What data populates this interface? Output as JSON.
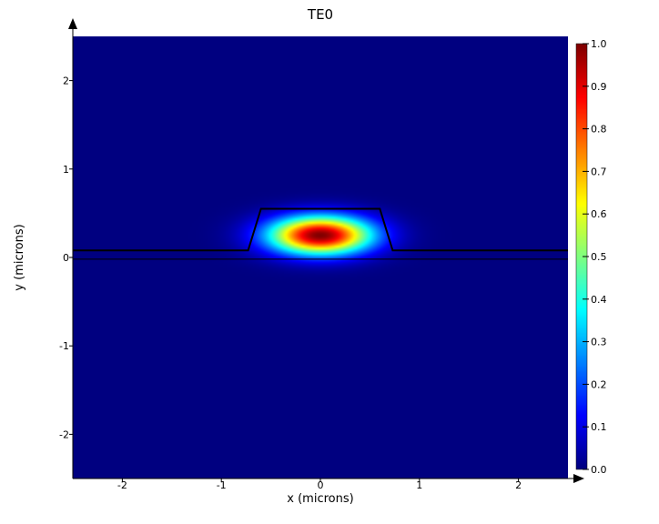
{
  "chart_data": {
    "type": "heatmap",
    "title": "TE0",
    "xlabel": "x (microns)",
    "ylabel": "y (microns)",
    "xlim": [
      -2.5,
      2.5
    ],
    "ylim": [
      -2.5,
      2.5
    ],
    "x_ticks": [
      {
        "value": -2,
        "label": "-2"
      },
      {
        "value": -1,
        "label": "-1"
      },
      {
        "value": 0,
        "label": "0"
      },
      {
        "value": 1,
        "label": "1"
      },
      {
        "value": 2,
        "label": "2"
      }
    ],
    "y_ticks": [
      {
        "value": 2,
        "label": "2"
      },
      {
        "value": 1,
        "label": "1"
      },
      {
        "value": 0,
        "label": "0"
      },
      {
        "value": -1,
        "label": "-1"
      },
      {
        "value": -2,
        "label": "-2"
      }
    ],
    "colormap": "jet",
    "colorbar": {
      "min": 0.0,
      "max": 1.0,
      "ticks": [
        {
          "value": 1.0,
          "label": "1.0"
        },
        {
          "value": 0.9,
          "label": "0.9"
        },
        {
          "value": 0.8,
          "label": "0.8"
        },
        {
          "value": 0.7,
          "label": "0.7"
        },
        {
          "value": 0.6,
          "label": "0.6"
        },
        {
          "value": 0.5,
          "label": "0.5"
        },
        {
          "value": 0.4,
          "label": "0.4"
        },
        {
          "value": 0.3,
          "label": "0.3"
        },
        {
          "value": 0.2,
          "label": "0.2"
        },
        {
          "value": 0.1,
          "label": "0.1"
        },
        {
          "value": 0.0,
          "label": "0.0"
        }
      ]
    },
    "field": {
      "peak_value": 1.0,
      "center": [
        0.0,
        0.25
      ],
      "sigma_x": 0.36,
      "sigma_y": 0.15
    },
    "waveguide_outline": [
      [
        -2.5,
        0.08
      ],
      [
        -0.73,
        0.08
      ],
      [
        -0.6,
        0.55
      ],
      [
        0.6,
        0.55
      ],
      [
        0.73,
        0.08
      ],
      [
        2.5,
        0.08
      ]
    ],
    "substrate_line": [
      [
        -2.5,
        -0.02
      ],
      [
        2.5,
        -0.02
      ]
    ],
    "grid": false,
    "colors": {
      "outline": "#000000",
      "background_field": "#000080"
    }
  }
}
